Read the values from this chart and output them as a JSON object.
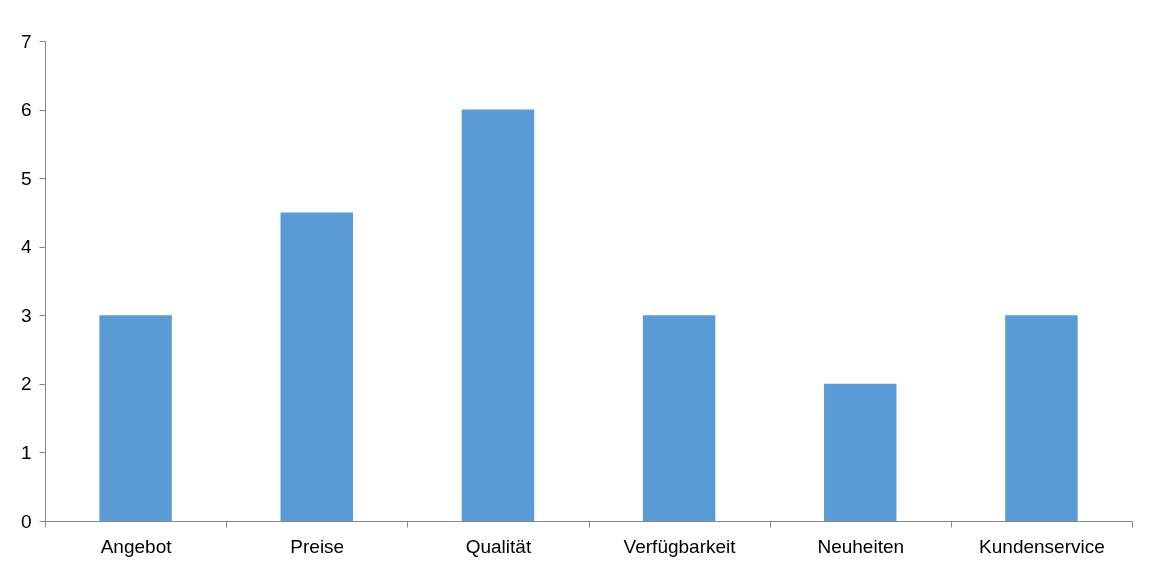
{
  "chart_data": {
    "type": "bar",
    "categories": [
      "Angebot",
      "Preise",
      "Qualität",
      "Verfügbarkeit",
      "Neuheiten",
      "Kundenservice"
    ],
    "values": [
      3,
      4.5,
      6,
      3,
      2,
      3
    ],
    "color": "#5b9bd5",
    "ylim": [
      0,
      7
    ],
    "yticks": [
      0,
      1,
      2,
      3,
      4,
      5,
      6,
      7
    ],
    "grid": false
  }
}
